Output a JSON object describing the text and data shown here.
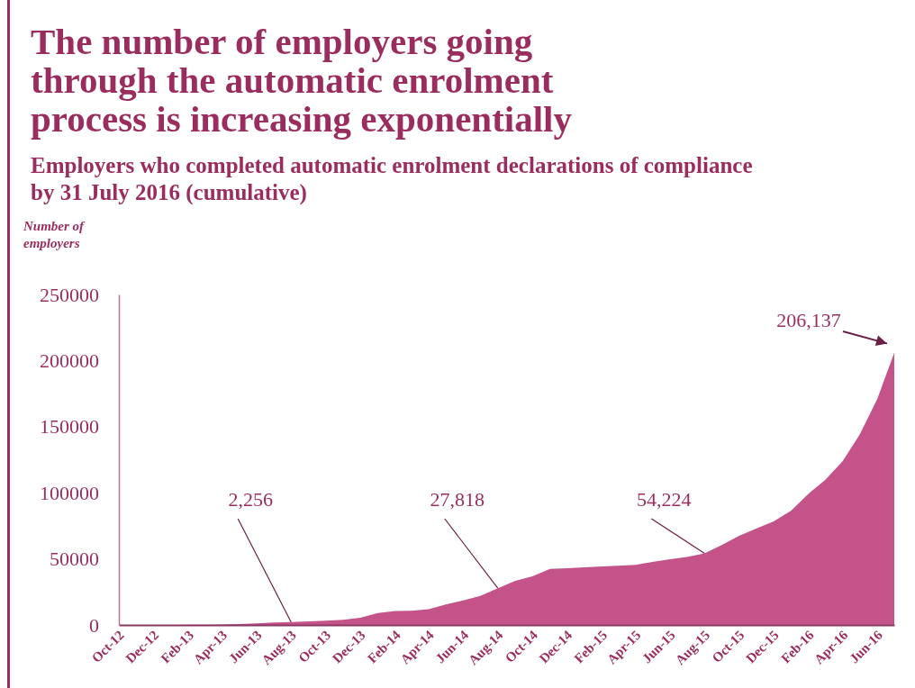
{
  "chart_data": {
    "type": "area",
    "title": "The number of employers going through the automatic enrolment process is increasing exponentially",
    "subtitle": "Employers who completed automatic enrolment declarations of compliance by 31 July 2016 (cumulative)",
    "ylabel": "Number of employers",
    "x": [
      "2012-10",
      "2012-11",
      "2012-12",
      "2013-01",
      "2013-02",
      "2013-03",
      "2013-04",
      "2013-05",
      "2013-06",
      "2013-07",
      "2013-08",
      "2013-09",
      "2013-10",
      "2013-11",
      "2013-12",
      "2014-01",
      "2014-02",
      "2014-03",
      "2014-04",
      "2014-05",
      "2014-06",
      "2014-07",
      "2014-08",
      "2014-09",
      "2014-10",
      "2014-11",
      "2014-12",
      "2015-01",
      "2015-02",
      "2015-03",
      "2015-04",
      "2015-05",
      "2015-06",
      "2015-07",
      "2015-08",
      "2015-09",
      "2015-10",
      "2015-11",
      "2015-12",
      "2016-01",
      "2016-02",
      "2016-03",
      "2016-04",
      "2016-05",
      "2016-06",
      "2016-07"
    ],
    "series": [
      {
        "color": "#c4538a",
        "values": [
          0,
          0,
          0,
          0,
          100,
          200,
          400,
          700,
          1200,
          1800,
          2256,
          2700,
          3200,
          3900,
          5500,
          9000,
          10500,
          10800,
          12000,
          15500,
          18500,
          22000,
          27818,
          33400,
          36800,
          42400,
          43000,
          43600,
          44200,
          44800,
          45400,
          47700,
          49700,
          51500,
          54224,
          60600,
          67400,
          73000,
          78300,
          86500,
          99400,
          109600,
          124000,
          144000,
          171000,
          206137
        ]
      }
    ],
    "xlim": [
      "2012-10",
      "2016-07"
    ],
    "xticks": [
      {
        "value": "2012-10",
        "label": "Oct-12"
      },
      {
        "value": "2012-12",
        "label": "Dec-12"
      },
      {
        "value": "2013-02",
        "label": "Feb-13"
      },
      {
        "value": "2013-04",
        "label": "Apr-13"
      },
      {
        "value": "2013-06",
        "label": "Jun-13"
      },
      {
        "value": "2013-08",
        "label": "Aug-13"
      },
      {
        "value": "2013-10",
        "label": "Oct-13"
      },
      {
        "value": "2013-12",
        "label": "Dec-13"
      },
      {
        "value": "2014-02",
        "label": "Feb-14"
      },
      {
        "value": "2014-04",
        "label": "Apr-14"
      },
      {
        "value": "2014-06",
        "label": "Jun-14"
      },
      {
        "value": "2014-08",
        "label": "Aug-14"
      },
      {
        "value": "2014-10",
        "label": "Oct-14"
      },
      {
        "value": "2014-12",
        "label": "Dec-14"
      },
      {
        "value": "2015-02",
        "label": "Feb-15"
      },
      {
        "value": "2015-04",
        "label": "Apr-15"
      },
      {
        "value": "2015-06",
        "label": "Jun-15"
      },
      {
        "value": "2015-08",
        "label": "Aug-15"
      },
      {
        "value": "2015-10",
        "label": "Oct-15"
      },
      {
        "value": "2015-12",
        "label": "Dec-15"
      },
      {
        "value": "2016-02",
        "label": "Feb-16"
      },
      {
        "value": "2016-04",
        "label": "Apr-16"
      },
      {
        "value": "2016-06",
        "label": "Jun-16"
      }
    ],
    "ylim": [
      0,
      250000
    ],
    "yticks": [
      0,
      50000,
      100000,
      150000,
      200000,
      250000
    ],
    "annotations": [
      {
        "text": "2,256",
        "x": "2013-08",
        "y": 2256
      },
      {
        "text": "27,818",
        "x": "2014-08",
        "y": 27818
      },
      {
        "text": "54,224",
        "x": "2015-08",
        "y": 54224
      },
      {
        "text": "206,137",
        "x": "2016-07",
        "y": 206137
      }
    ]
  }
}
